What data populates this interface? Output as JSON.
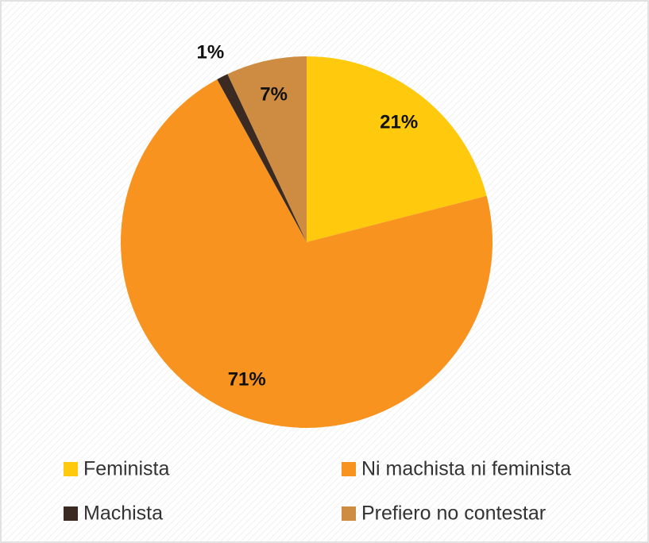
{
  "chart_data": {
    "type": "pie",
    "categories": [
      "Feminista",
      "Ni machista ni feminista",
      "Machista",
      "Prefiero no contestar"
    ],
    "values": [
      21,
      71,
      1,
      7
    ],
    "value_labels": [
      "21%",
      "71%",
      "1%",
      "7%"
    ],
    "colors": [
      "#ffc90e",
      "#f7931e",
      "#3a2a22",
      "#cd8c42"
    ],
    "legend": "bottom"
  }
}
